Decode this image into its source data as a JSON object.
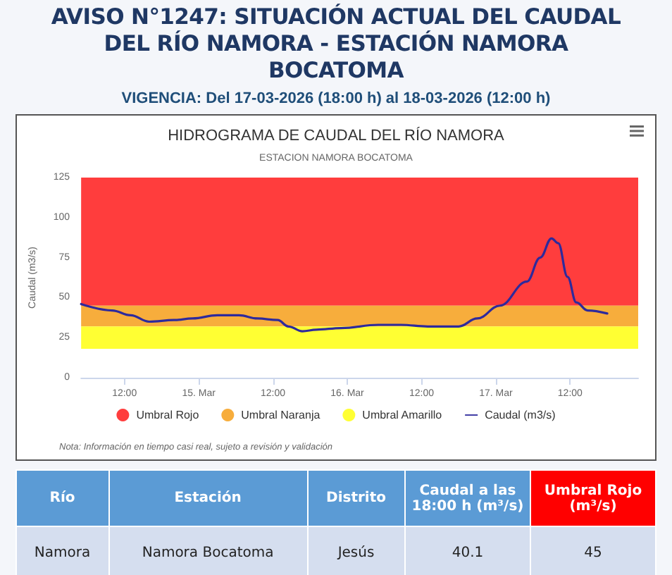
{
  "chart_data": [
    {
      "type": "line",
      "title": "HIDROGRAMA DE CAUDAL DEL RÍO NAMORA",
      "subtitle": "ESTACION NAMORA BOCATOMA",
      "ylabel": "Caudal (m3/s)",
      "annotations": [
        "AVISO N°1247: SITUACIÓN ACTUAL DEL CAUDAL DEL RÍO NAMORA - ESTACIÓN NAMORA BOCATOMA",
        "VIGENCIA: Del 17-03-2026 (18:00 h) al 18-03-2026 (12:00 h)",
        "Nota: Información en tiempo casi real, sujeto a revisión y validación"
      ],
      "xlim": [
        "2026-03-14T05:00",
        "2026-03-17T23:00"
      ],
      "xticks": [
        {
          "value": "2026-03-14T12:00",
          "label": "12:00"
        },
        {
          "value": "2026-03-15T00:00",
          "label": "15. Mar"
        },
        {
          "value": "2026-03-15T12:00",
          "label": "12:00"
        },
        {
          "value": "2026-03-16T00:00",
          "label": "16. Mar"
        },
        {
          "value": "2026-03-16T12:00",
          "label": "12:00"
        },
        {
          "value": "2026-03-17T00:00",
          "label": "17. Mar"
        },
        {
          "value": "2026-03-17T12:00",
          "label": "12:00"
        }
      ],
      "ylim": [
        0,
        125
      ],
      "yticks": [
        0,
        25,
        50,
        75,
        100,
        125
      ],
      "grid": false,
      "legend": "bottom",
      "marker": "none",
      "line_style": "solid",
      "bands": [
        {
          "axis": "y",
          "from": 45,
          "to": 125,
          "label": "Umbral Rojo",
          "color": "#ff3d3d"
        },
        {
          "axis": "y",
          "from": 32,
          "to": 45,
          "label": "Umbral Naranja",
          "color": "#f7ad3c"
        },
        {
          "axis": "y",
          "from": 18,
          "to": 32,
          "label": "Umbral Amarillo",
          "color": "#ffff33"
        }
      ],
      "series": [
        {
          "name": "Caudal (m3/s)",
          "color": "#2e2a9c",
          "x": [
            "2026-03-14T05:00",
            "2026-03-14T10:00",
            "2026-03-14T13:00",
            "2026-03-14T16:00",
            "2026-03-14T20:00",
            "2026-03-14T23:00",
            "2026-03-15T03:00",
            "2026-03-15T06:30",
            "2026-03-15T09:30",
            "2026-03-15T12:45",
            "2026-03-15T14:30",
            "2026-03-15T16:45",
            "2026-03-15T19:00",
            "2026-03-15T23:00",
            "2026-03-16T05:00",
            "2026-03-16T08:40",
            "2026-03-16T13:00",
            "2026-03-16T18:00",
            "2026-03-16T21:00",
            "2026-03-17T00:40",
            "2026-03-17T05:00",
            "2026-03-17T07:10",
            "2026-03-17T09:00",
            "2026-03-17T10:05",
            "2026-03-17T11:35",
            "2026-03-17T13:00",
            "2026-03-17T14:50",
            "2026-03-17T18:00"
          ],
          "values": [
            46,
            42,
            39,
            35,
            36,
            37,
            39,
            39,
            37,
            36,
            32,
            29,
            30,
            31,
            33,
            33,
            32,
            32,
            37,
            45,
            60,
            75,
            87,
            84,
            63,
            47,
            42,
            40.1
          ]
        }
      ]
    },
    {
      "type": "other",
      "annotations": [
        "Río",
        "Estación",
        "Distrito",
        "Caudal a las 18:00 h (m³/s)",
        "Umbral Rojo (m³/s)",
        "Namora",
        "Namora Bocatoma",
        "Jesús",
        "40.1",
        "45"
      ]
    }
  ]
}
